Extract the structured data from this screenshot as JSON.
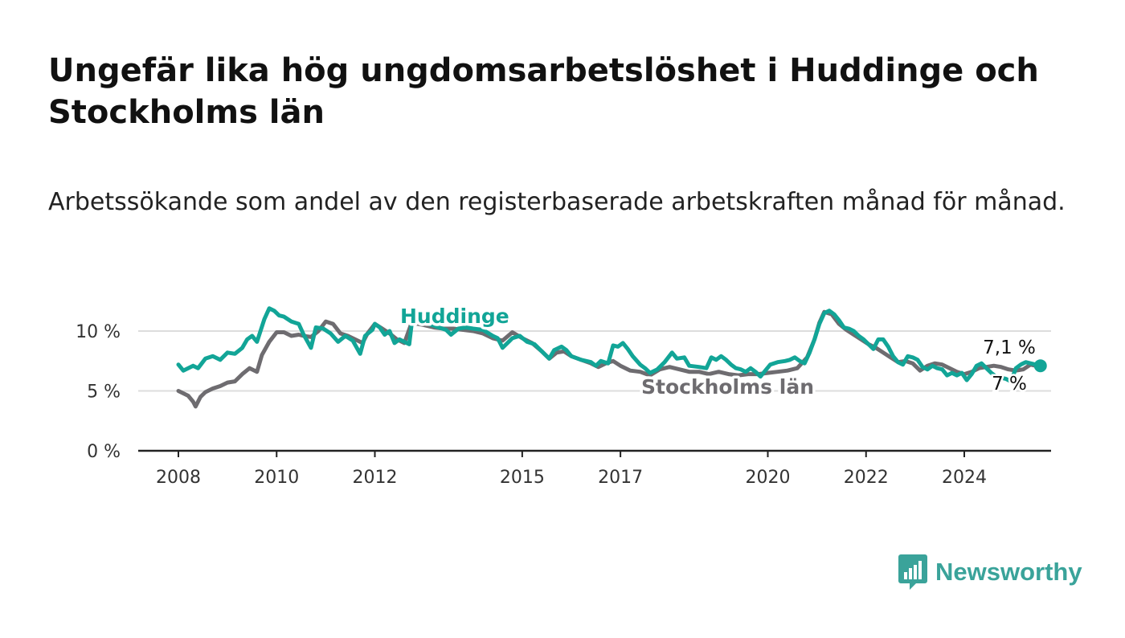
{
  "title": "Ungefär lika hög ungdomsarbetslöshet i Huddinge och Stockholms län",
  "subtitle": "Arbetssökande som andel av den registerbaserade arbetskraften månad för månad.",
  "brand": {
    "name": "Newsworthy",
    "color": "#3aa39a",
    "icon": "bar-chart-speech-bubble-icon"
  },
  "chart_data": {
    "type": "line",
    "title": "Ungefär lika hög ungdomsarbetslöshet i Huddinge och Stockholms län",
    "subtitle": "Arbetssökande som andel av den registerbaserade arbetskraften månad för månad.",
    "xlabel": "",
    "ylabel": "",
    "xlim": [
      2008,
      2024.9
    ],
    "ylim": [
      0,
      12.5
    ],
    "x_ticks": [
      2008,
      2010,
      2012,
      2015,
      2017,
      2020,
      2022,
      2024
    ],
    "x_tick_labels": [
      "2008",
      "2010",
      "2012",
      "2015",
      "2017",
      "2020",
      "2022",
      "2024"
    ],
    "y_ticks": [
      0,
      5,
      10
    ],
    "y_tick_labels": [
      "0 %",
      "5 %",
      "10 %"
    ],
    "grid": true,
    "legend": "direct labels on lines",
    "series": [
      {
        "name": "Huddinge",
        "color": "#12a597",
        "end_label": "7,1 %",
        "points": [
          [
            2008.0,
            7.2
          ],
          [
            2008.1,
            6.7
          ],
          [
            2008.3,
            7.1
          ],
          [
            2008.4,
            6.9
          ],
          [
            2008.55,
            7.7
          ],
          [
            2008.7,
            7.9
          ],
          [
            2008.85,
            7.6
          ],
          [
            2009.0,
            8.2
          ],
          [
            2009.15,
            8.1
          ],
          [
            2009.3,
            8.6
          ],
          [
            2009.4,
            9.3
          ],
          [
            2009.5,
            9.6
          ],
          [
            2009.6,
            9.1
          ],
          [
            2009.75,
            11.0
          ],
          [
            2009.85,
            11.9
          ],
          [
            2009.95,
            11.7
          ],
          [
            2010.05,
            11.3
          ],
          [
            2010.15,
            11.2
          ],
          [
            2010.3,
            10.8
          ],
          [
            2010.45,
            10.6
          ],
          [
            2010.55,
            9.7
          ],
          [
            2010.7,
            8.6
          ],
          [
            2010.8,
            10.3
          ],
          [
            2010.95,
            10.2
          ],
          [
            2011.1,
            9.8
          ],
          [
            2011.25,
            9.1
          ],
          [
            2011.4,
            9.6
          ],
          [
            2011.55,
            9.2
          ],
          [
            2011.7,
            8.1
          ],
          [
            2011.8,
            9.6
          ],
          [
            2011.95,
            10.1
          ],
          [
            2012.0,
            10.6
          ],
          [
            2012.1,
            10.3
          ],
          [
            2012.2,
            9.7
          ],
          [
            2012.3,
            10.0
          ],
          [
            2012.4,
            9.0
          ],
          [
            2012.5,
            9.3
          ],
          [
            2012.7,
            8.9
          ],
          [
            2012.78,
            11.7
          ],
          [
            2012.9,
            11.2
          ],
          [
            2013.1,
            10.6
          ],
          [
            2013.3,
            10.3
          ],
          [
            2013.45,
            10.1
          ],
          [
            2013.55,
            9.7
          ],
          [
            2013.7,
            10.2
          ],
          [
            2013.85,
            10.3
          ],
          [
            2014.0,
            10.2
          ],
          [
            2014.2,
            10.1
          ],
          [
            2014.4,
            9.6
          ],
          [
            2014.5,
            9.4
          ],
          [
            2014.6,
            8.6
          ],
          [
            2014.8,
            9.4
          ],
          [
            2014.95,
            9.6
          ],
          [
            2015.1,
            9.1
          ],
          [
            2015.25,
            8.9
          ],
          [
            2015.4,
            8.3
          ],
          [
            2015.55,
            7.7
          ],
          [
            2015.65,
            8.4
          ],
          [
            2015.8,
            8.7
          ],
          [
            2015.9,
            8.4
          ],
          [
            2016.0,
            7.9
          ],
          [
            2016.2,
            7.6
          ],
          [
            2016.4,
            7.4
          ],
          [
            2016.5,
            7.1
          ],
          [
            2016.6,
            7.5
          ],
          [
            2016.75,
            7.3
          ],
          [
            2016.85,
            8.8
          ],
          [
            2016.95,
            8.7
          ],
          [
            2017.05,
            9.0
          ],
          [
            2017.15,
            8.5
          ],
          [
            2017.25,
            7.9
          ],
          [
            2017.4,
            7.2
          ],
          [
            2017.5,
            6.9
          ],
          [
            2017.6,
            6.5
          ],
          [
            2017.75,
            6.8
          ],
          [
            2017.9,
            7.4
          ],
          [
            2018.05,
            8.2
          ],
          [
            2018.15,
            7.7
          ],
          [
            2018.3,
            7.8
          ],
          [
            2018.4,
            7.1
          ],
          [
            2018.6,
            7.0
          ],
          [
            2018.75,
            6.9
          ],
          [
            2018.85,
            7.8
          ],
          [
            2018.95,
            7.6
          ],
          [
            2019.05,
            7.9
          ],
          [
            2019.15,
            7.6
          ],
          [
            2019.25,
            7.2
          ],
          [
            2019.35,
            6.9
          ],
          [
            2019.45,
            6.8
          ],
          [
            2019.55,
            6.6
          ],
          [
            2019.65,
            6.9
          ],
          [
            2019.75,
            6.6
          ],
          [
            2019.85,
            6.2
          ],
          [
            2019.95,
            6.7
          ],
          [
            2020.05,
            7.2
          ],
          [
            2020.2,
            7.4
          ],
          [
            2020.35,
            7.5
          ],
          [
            2020.45,
            7.6
          ],
          [
            2020.55,
            7.8
          ],
          [
            2020.65,
            7.5
          ],
          [
            2020.75,
            7.3
          ],
          [
            2020.85,
            8.2
          ],
          [
            2020.95,
            9.3
          ],
          [
            2021.05,
            10.6
          ],
          [
            2021.15,
            11.5
          ],
          [
            2021.25,
            11.7
          ],
          [
            2021.35,
            11.4
          ],
          [
            2021.45,
            10.9
          ],
          [
            2021.55,
            10.3
          ],
          [
            2021.65,
            10.2
          ],
          [
            2021.75,
            10.0
          ],
          [
            2021.85,
            9.6
          ],
          [
            2021.95,
            9.3
          ],
          [
            2022.05,
            8.9
          ],
          [
            2022.15,
            8.5
          ],
          [
            2022.25,
            9.3
          ],
          [
            2022.35,
            9.3
          ],
          [
            2022.45,
            8.7
          ],
          [
            2022.55,
            7.9
          ],
          [
            2022.65,
            7.4
          ],
          [
            2022.75,
            7.2
          ],
          [
            2022.85,
            7.9
          ],
          [
            2022.95,
            7.8
          ],
          [
            2023.05,
            7.6
          ],
          [
            2023.15,
            7.0
          ],
          [
            2023.25,
            6.8
          ],
          [
            2023.35,
            7.1
          ],
          [
            2023.45,
            6.9
          ],
          [
            2023.55,
            6.8
          ],
          [
            2023.65,
            6.3
          ],
          [
            2023.75,
            6.5
          ],
          [
            2023.85,
            6.3
          ],
          [
            2023.95,
            6.5
          ],
          [
            2024.05,
            5.9
          ],
          [
            2024.15,
            6.4
          ],
          [
            2024.25,
            7.1
          ],
          [
            2024.35,
            7.3
          ],
          [
            2024.45,
            6.9
          ],
          [
            2024.55,
            6.5
          ],
          [
            2024.65,
            6.2
          ],
          [
            2024.75,
            6.1
          ],
          [
            2024.85,
            6.0
          ],
          [
            2024.95,
            5.8
          ],
          [
            2025.05,
            6.9
          ],
          [
            2025.15,
            7.2
          ],
          [
            2025.25,
            7.4
          ],
          [
            2025.35,
            7.3
          ],
          [
            2025.45,
            7.2
          ],
          [
            2025.55,
            7.1
          ]
        ]
      },
      {
        "name": "Stockholms län",
        "color": "#6e6c70",
        "end_label": "7 %",
        "points": [
          [
            2008.0,
            5.0
          ],
          [
            2008.1,
            4.8
          ],
          [
            2008.2,
            4.6
          ],
          [
            2008.3,
            4.1
          ],
          [
            2008.35,
            3.7
          ],
          [
            2008.45,
            4.5
          ],
          [
            2008.55,
            4.9
          ],
          [
            2008.7,
            5.2
          ],
          [
            2008.85,
            5.4
          ],
          [
            2009.0,
            5.7
          ],
          [
            2009.15,
            5.8
          ],
          [
            2009.3,
            6.4
          ],
          [
            2009.45,
            6.9
          ],
          [
            2009.6,
            6.6
          ],
          [
            2009.7,
            8.0
          ],
          [
            2009.85,
            9.1
          ],
          [
            2010.0,
            9.9
          ],
          [
            2010.15,
            9.9
          ],
          [
            2010.3,
            9.6
          ],
          [
            2010.45,
            9.7
          ],
          [
            2010.55,
            9.6
          ],
          [
            2010.7,
            9.5
          ],
          [
            2010.85,
            10.0
          ],
          [
            2011.0,
            10.8
          ],
          [
            2011.15,
            10.6
          ],
          [
            2011.3,
            9.8
          ],
          [
            2011.45,
            9.6
          ],
          [
            2011.6,
            9.3
          ],
          [
            2011.75,
            9.0
          ],
          [
            2011.85,
            9.8
          ],
          [
            2012.0,
            10.6
          ],
          [
            2012.15,
            10.2
          ],
          [
            2012.3,
            9.8
          ],
          [
            2012.45,
            9.3
          ],
          [
            2012.6,
            9.0
          ],
          [
            2012.75,
            10.7
          ],
          [
            2013.0,
            10.5
          ],
          [
            2013.2,
            10.3
          ],
          [
            2013.4,
            10.2
          ],
          [
            2013.6,
            10.2
          ],
          [
            2013.8,
            10.1
          ],
          [
            2014.0,
            10.0
          ],
          [
            2014.2,
            9.8
          ],
          [
            2014.4,
            9.4
          ],
          [
            2014.6,
            9.2
          ],
          [
            2014.8,
            9.9
          ],
          [
            2015.0,
            9.4
          ],
          [
            2015.2,
            9.0
          ],
          [
            2015.4,
            8.3
          ],
          [
            2015.55,
            7.7
          ],
          [
            2015.7,
            8.2
          ],
          [
            2015.85,
            8.3
          ],
          [
            2016.0,
            7.9
          ],
          [
            2016.2,
            7.6
          ],
          [
            2016.4,
            7.3
          ],
          [
            2016.55,
            7.0
          ],
          [
            2016.7,
            7.3
          ],
          [
            2016.85,
            7.5
          ],
          [
            2017.0,
            7.1
          ],
          [
            2017.2,
            6.7
          ],
          [
            2017.4,
            6.6
          ],
          [
            2017.6,
            6.3
          ],
          [
            2017.8,
            6.8
          ],
          [
            2018.0,
            7.0
          ],
          [
            2018.2,
            6.8
          ],
          [
            2018.4,
            6.6
          ],
          [
            2018.6,
            6.6
          ],
          [
            2018.8,
            6.4
          ],
          [
            2019.0,
            6.6
          ],
          [
            2019.2,
            6.4
          ],
          [
            2019.4,
            6.3
          ],
          [
            2019.6,
            6.4
          ],
          [
            2019.8,
            6.4
          ],
          [
            2020.0,
            6.5
          ],
          [
            2020.2,
            6.6
          ],
          [
            2020.4,
            6.7
          ],
          [
            2020.6,
            6.9
          ],
          [
            2020.8,
            7.8
          ],
          [
            2020.95,
            9.3
          ],
          [
            2021.05,
            10.7
          ],
          [
            2021.15,
            11.6
          ],
          [
            2021.3,
            11.4
          ],
          [
            2021.45,
            10.6
          ],
          [
            2021.6,
            10.1
          ],
          [
            2021.75,
            9.7
          ],
          [
            2021.9,
            9.3
          ],
          [
            2022.05,
            8.9
          ],
          [
            2022.2,
            8.6
          ],
          [
            2022.35,
            8.2
          ],
          [
            2022.5,
            7.8
          ],
          [
            2022.65,
            7.4
          ],
          [
            2022.8,
            7.5
          ],
          [
            2022.95,
            7.3
          ],
          [
            2023.1,
            6.7
          ],
          [
            2023.25,
            7.1
          ],
          [
            2023.4,
            7.3
          ],
          [
            2023.55,
            7.2
          ],
          [
            2023.7,
            6.9
          ],
          [
            2023.85,
            6.6
          ],
          [
            2024.0,
            6.4
          ],
          [
            2024.15,
            6.6
          ],
          [
            2024.3,
            6.9
          ],
          [
            2024.45,
            7.0
          ],
          [
            2024.6,
            7.1
          ],
          [
            2024.75,
            7.0
          ],
          [
            2024.9,
            6.8
          ],
          [
            2025.05,
            6.7
          ],
          [
            2025.2,
            6.8
          ],
          [
            2025.35,
            7.2
          ],
          [
            2025.55,
            7.0
          ]
        ]
      }
    ]
  }
}
